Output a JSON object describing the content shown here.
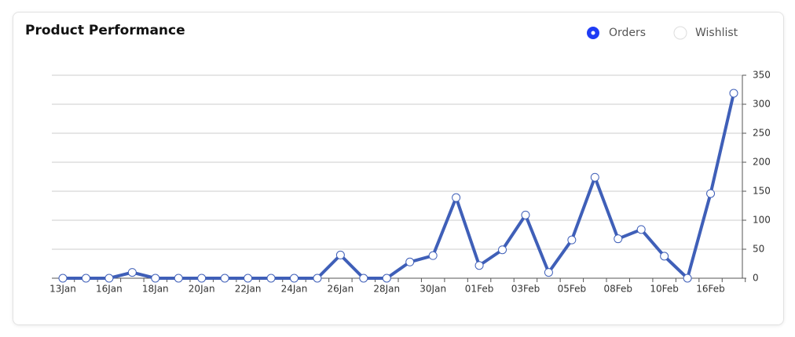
{
  "chart_data": {
    "type": "line",
    "title": "Product Performance",
    "categories": [
      "13Jan",
      null,
      "16Jan",
      null,
      "18Jan",
      null,
      "20Jan",
      null,
      "22Jan",
      null,
      "24Jan",
      null,
      "26Jan",
      null,
      "28Jan",
      null,
      "30Jan",
      null,
      "01Feb",
      null,
      "03Feb",
      null,
      "05Feb",
      null,
      "08Feb",
      null,
      "10Feb",
      null,
      "16Feb",
      null
    ],
    "series": [
      {
        "name": "Orders",
        "color": "#3f5fb8",
        "values": [
          0,
          0,
          0,
          10,
          0,
          0,
          0,
          0,
          0,
          0,
          0,
          0,
          40,
          0,
          0,
          28,
          39,
          139,
          22,
          49,
          109,
          10,
          66,
          174,
          68,
          84,
          38,
          0,
          146,
          319
        ]
      }
    ],
    "inactive_series": [
      "Wishlist"
    ],
    "ylim": [
      0,
      350
    ],
    "yticks": [
      0,
      50,
      100,
      150,
      200,
      250,
      300,
      350
    ],
    "grid": true
  }
}
